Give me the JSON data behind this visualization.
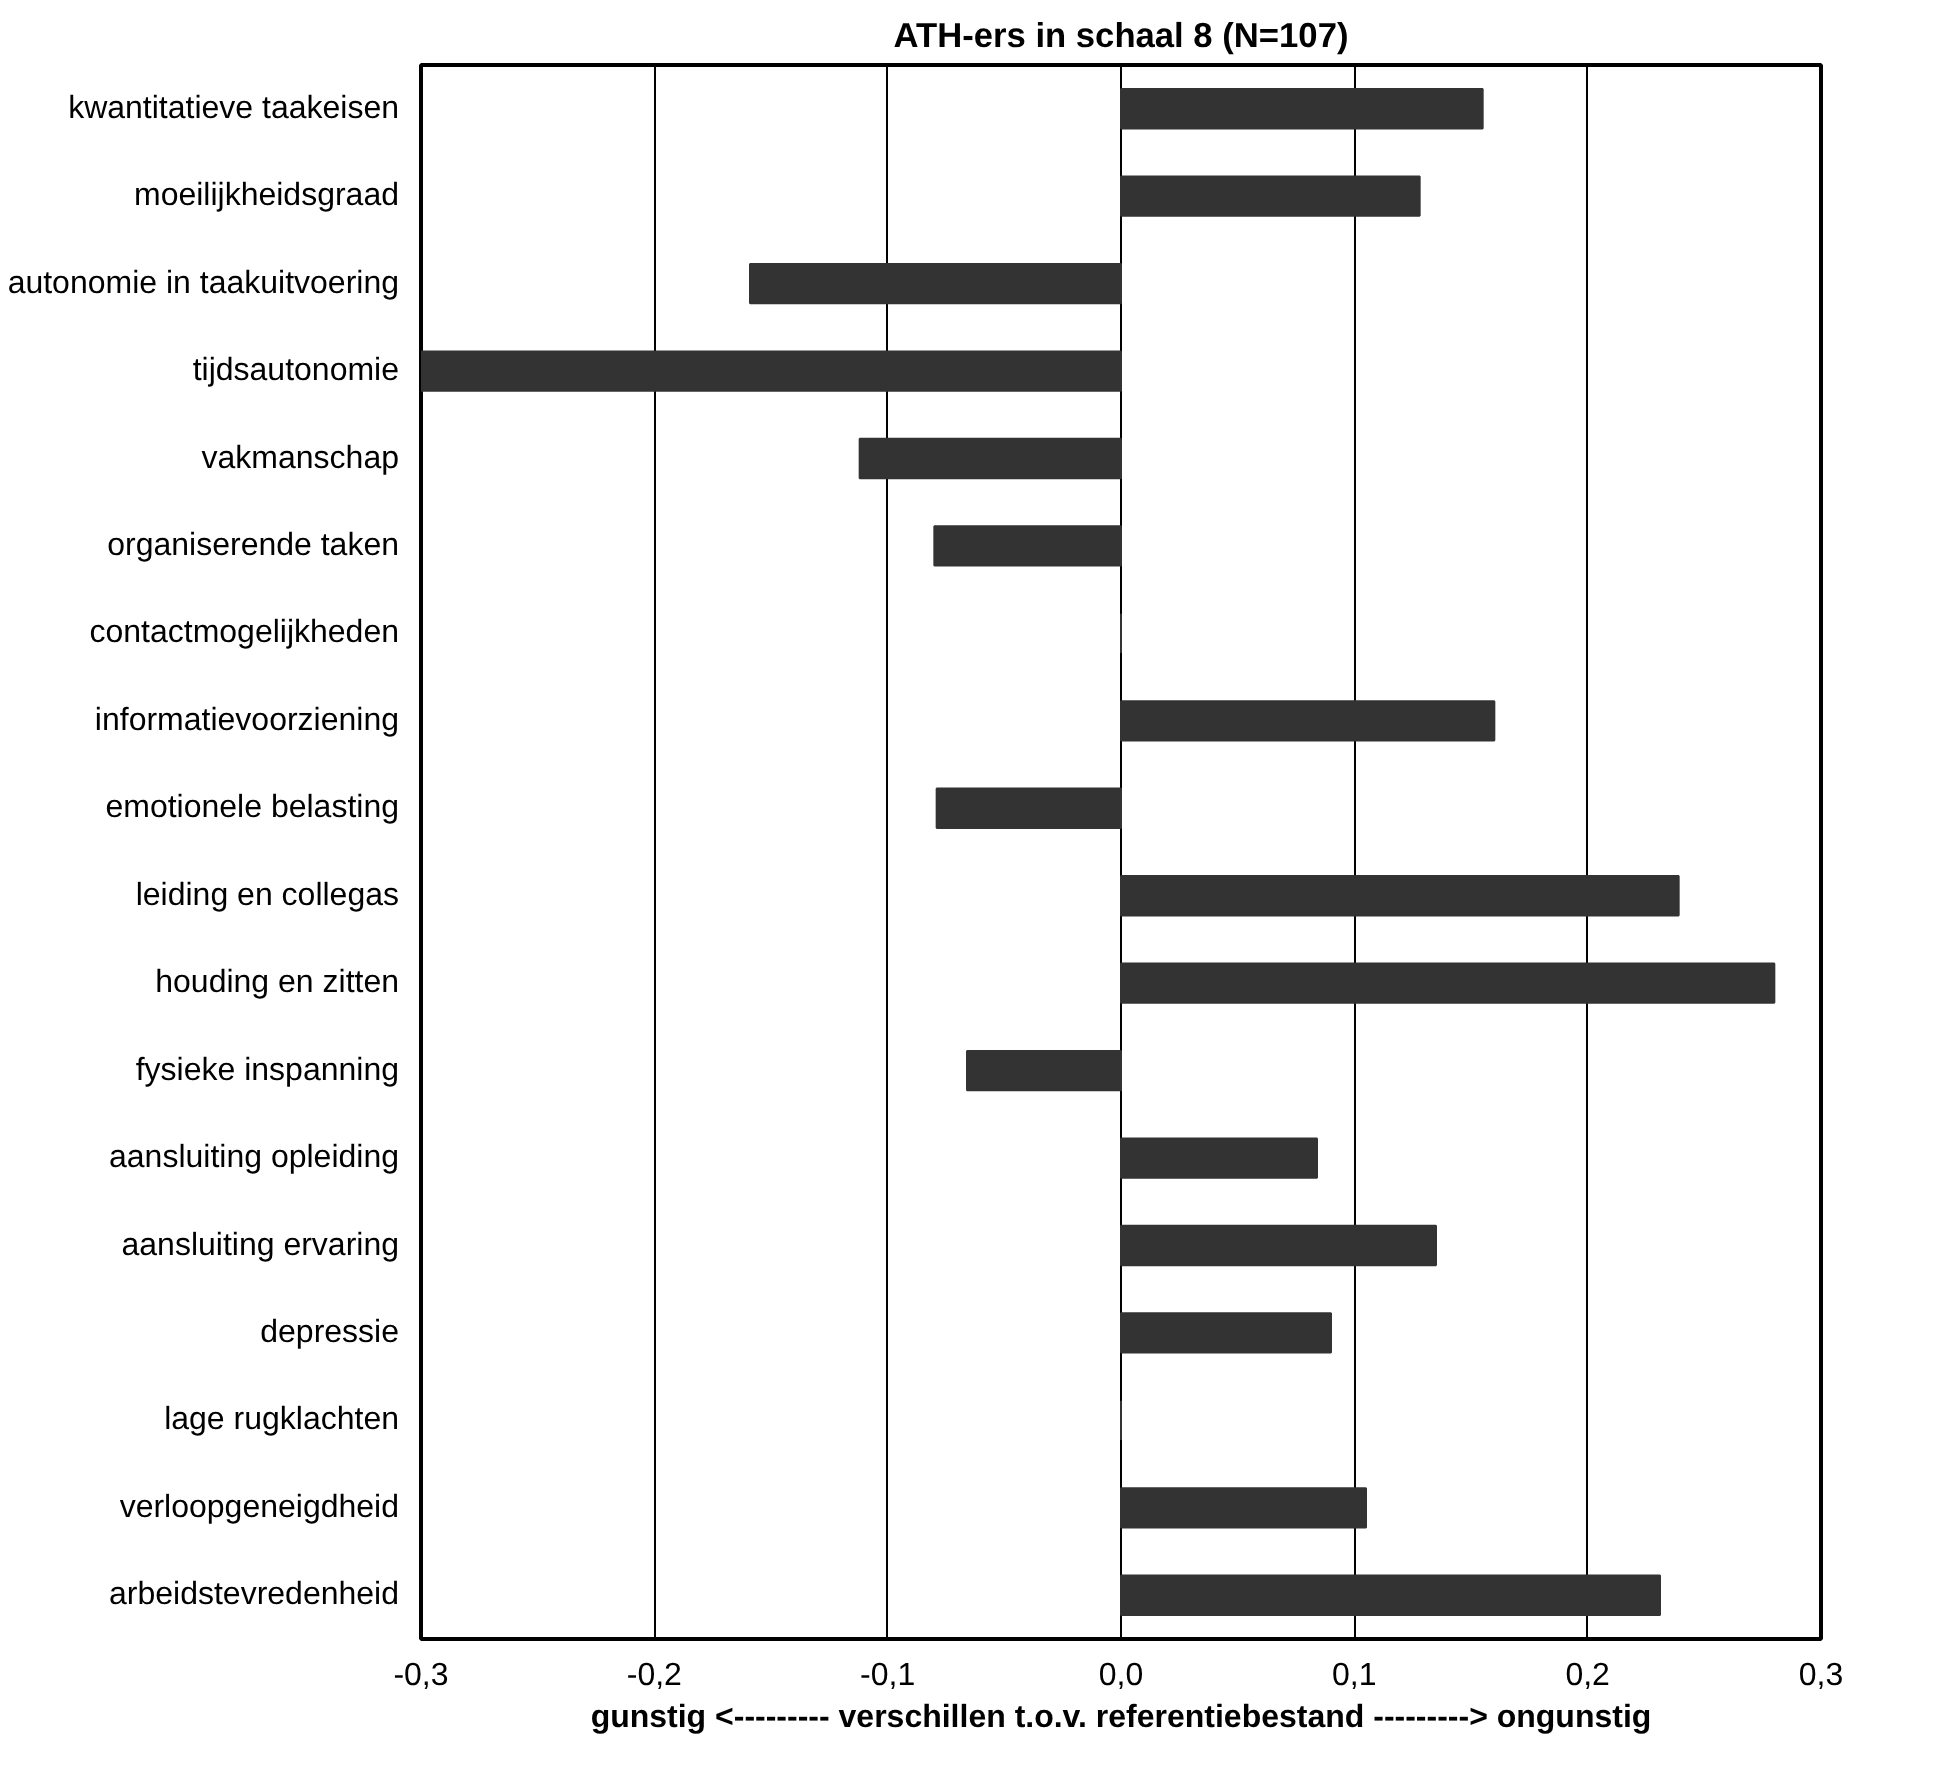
{
  "chart_data": {
    "type": "bar",
    "orientation": "horizontal",
    "title": "ATH-ers in schaal 8 (N=107)",
    "xlabel": "gunstig <--------- verschillen t.o.v. referentiebestand ---------> ongunstig",
    "categories": [
      "kwantitatieve taakeisen",
      "moeilijkheidsgraad",
      "autonomie in taakuitvoering",
      "tijdsautonomie",
      "vakmanschap",
      "organiserende taken",
      "contactmogelijkheden",
      "informatievoorziening",
      "emotionele belasting",
      "leiding en collegas",
      "houding en zitten",
      "fysieke inspanning",
      "aansluiting opleiding",
      "aansluiting ervaring",
      "depressie",
      "lage rugklachten",
      "verloopgeneigdheid",
      "arbeidstevredenheid"
    ],
    "values": [
      0.155,
      0.128,
      -0.159,
      -0.3,
      -0.112,
      -0.08,
      0,
      0.16,
      -0.079,
      0.239,
      0.28,
      -0.066,
      0.084,
      0.135,
      0.09,
      0,
      0.105,
      0.231
    ],
    "color": "#333333",
    "xlim": [
      -0.3,
      0.3
    ],
    "xticks": [
      {
        "value": -0.3,
        "label": "-0,3"
      },
      {
        "value": -0.2,
        "label": "-0,2"
      },
      {
        "value": -0.1,
        "label": "-0,1"
      },
      {
        "value": 0,
        "label": "0,0"
      },
      {
        "value": 0.1,
        "label": "0,1"
      },
      {
        "value": 0.2,
        "label": "0,2"
      },
      {
        "value": 0.3,
        "label": "0,3"
      }
    ],
    "grid": "x"
  }
}
